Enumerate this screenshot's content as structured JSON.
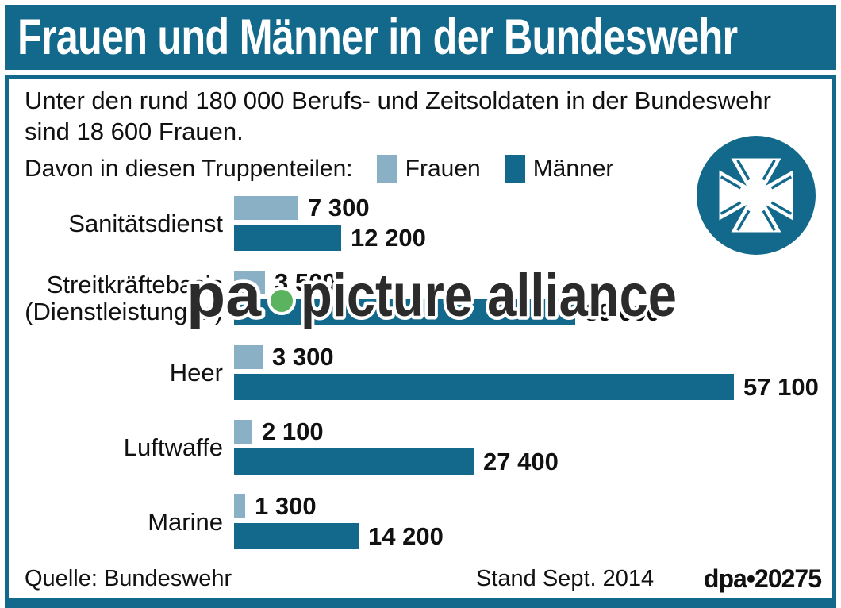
{
  "colors": {
    "teal": "#12698b",
    "light_blue": "#8ab0c5",
    "text": "#111111",
    "watermark_ink": "#2b2b2b",
    "watermark_green": "#5cb35f"
  },
  "header": {
    "title": "Frauen und Männer in der Bundeswehr"
  },
  "intro": {
    "text": "Unter den rund 180 000 Berufs- und Zeitsoldaten in der Bundeswehr\nsind 18 600 Frauen.",
    "legend_prefix": "Davon in diesen Truppenteilen:"
  },
  "legend": {
    "frauen": "Frauen",
    "maenner": "Männer"
  },
  "chart_data": {
    "type": "bar",
    "orientation": "horizontal",
    "title": "Frauen und Männer in der Bundeswehr",
    "categories": [
      "Sanitätsdienst",
      "Streitkräftebasis\n(Dienstleistungen)",
      "Heer",
      "Luftwaffe",
      "Marine"
    ],
    "series": [
      {
        "name": "Frauen",
        "color": "#8ab0c5",
        "values": [
          7300,
          3500,
          3300,
          2100,
          1300
        ],
        "value_labels": [
          "7 300",
          "3 500",
          "3 300",
          "2 100",
          "1 300"
        ]
      },
      {
        "name": "Männer",
        "color": "#12698b",
        "values": [
          12200,
          39000,
          57100,
          27400,
          14200
        ],
        "value_labels": [
          "12 200",
          "39 000",
          "57 100",
          "27 400",
          "14 200"
        ]
      }
    ],
    "xmax": 57100,
    "grid": false,
    "legend_position": "top",
    "value_labels_position": "outside-end"
  },
  "watermark": {
    "prefix": "pa",
    "label": "picture alliance"
  },
  "footer": {
    "source": "Quelle: Bundeswehr",
    "date": "Stand Sept. 2014",
    "credit": "dpa•20275"
  }
}
